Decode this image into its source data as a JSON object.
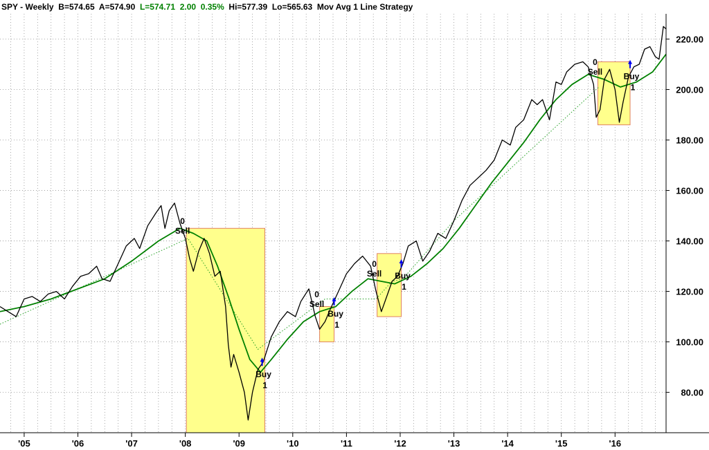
{
  "header": {
    "symbol": "SPY - Weekly",
    "bid": "B=574.65",
    "ask": "A=574.90",
    "last": "L=574.71",
    "change": "2.00",
    "change_pct": "0.35%",
    "hi": "Hi=577.39",
    "lo": "Lo=565.63",
    "study": "Mov Avg 1 Line  Strategy"
  },
  "colors": {
    "price": "#000000",
    "moving_average": "#008000",
    "trend_dotted": "#22a022",
    "highlight_fill": "#ffff8c",
    "highlight_border": "#e08060",
    "signal_arrow": "#0000ee",
    "positive_change": "#008000",
    "grid": "#909090"
  },
  "chart_data": {
    "type": "line",
    "title": "",
    "xlabel": "",
    "ylabel": "",
    "x_ticks": [
      "'05",
      "'06",
      "'07",
      "'08",
      "'09",
      "'10",
      "'11",
      "'12",
      "'13",
      "'14",
      "'15",
      "'16"
    ],
    "xlim": [
      2004.55,
      2016.95
    ],
    "y_ticks": [
      "80.00",
      "100.00",
      "120.00",
      "140.00",
      "160.00",
      "180.00",
      "200.00",
      "220.00"
    ],
    "ylim": [
      64,
      230
    ],
    "y_axis_side": "right",
    "grid": true,
    "legend": "none",
    "series": [
      {
        "key": "price",
        "style": "black line",
        "points": [
          [
            2004.55,
            114
          ],
          [
            2004.7,
            112
          ],
          [
            2004.85,
            110
          ],
          [
            2005.0,
            117
          ],
          [
            2005.15,
            118
          ],
          [
            2005.3,
            116
          ],
          [
            2005.45,
            119
          ],
          [
            2005.6,
            120
          ],
          [
            2005.75,
            117
          ],
          [
            2005.9,
            122
          ],
          [
            2006.05,
            126
          ],
          [
            2006.2,
            127
          ],
          [
            2006.35,
            130
          ],
          [
            2006.45,
            125
          ],
          [
            2006.6,
            124
          ],
          [
            2006.75,
            131
          ],
          [
            2006.9,
            138
          ],
          [
            2007.05,
            141
          ],
          [
            2007.15,
            137
          ],
          [
            2007.3,
            146
          ],
          [
            2007.45,
            151
          ],
          [
            2007.55,
            154
          ],
          [
            2007.62,
            145
          ],
          [
            2007.7,
            152
          ],
          [
            2007.8,
            155
          ],
          [
            2007.9,
            147
          ],
          [
            2008.0,
            141
          ],
          [
            2008.08,
            133
          ],
          [
            2008.15,
            128
          ],
          [
            2008.25,
            136
          ],
          [
            2008.35,
            141
          ],
          [
            2008.45,
            135
          ],
          [
            2008.55,
            126
          ],
          [
            2008.65,
            128
          ],
          [
            2008.75,
            114
          ],
          [
            2008.8,
            99
          ],
          [
            2008.85,
            90
          ],
          [
            2008.9,
            95
          ],
          [
            2009.0,
            88
          ],
          [
            2009.1,
            80
          ],
          [
            2009.17,
            69
          ],
          [
            2009.25,
            80
          ],
          [
            2009.35,
            89
          ],
          [
            2009.45,
            92
          ],
          [
            2009.6,
            102
          ],
          [
            2009.75,
            108
          ],
          [
            2009.9,
            112
          ],
          [
            2010.05,
            110
          ],
          [
            2010.15,
            116
          ],
          [
            2010.3,
            121
          ],
          [
            2010.42,
            110
          ],
          [
            2010.5,
            105
          ],
          [
            2010.6,
            108
          ],
          [
            2010.7,
            113
          ],
          [
            2010.85,
            120
          ],
          [
            2011.0,
            127
          ],
          [
            2011.15,
            131
          ],
          [
            2011.3,
            134
          ],
          [
            2011.45,
            130
          ],
          [
            2011.55,
            120
          ],
          [
            2011.65,
            112
          ],
          [
            2011.75,
            118
          ],
          [
            2011.85,
            124
          ],
          [
            2011.95,
            126
          ],
          [
            2012.05,
            131
          ],
          [
            2012.15,
            138
          ],
          [
            2012.3,
            140
          ],
          [
            2012.42,
            132
          ],
          [
            2012.55,
            136
          ],
          [
            2012.7,
            143
          ],
          [
            2012.85,
            141
          ],
          [
            2013.0,
            148
          ],
          [
            2013.15,
            156
          ],
          [
            2013.3,
            162
          ],
          [
            2013.45,
            165
          ],
          [
            2013.6,
            168
          ],
          [
            2013.75,
            172
          ],
          [
            2013.9,
            180
          ],
          [
            2014.05,
            178
          ],
          [
            2014.15,
            185
          ],
          [
            2014.3,
            188
          ],
          [
            2014.45,
            196
          ],
          [
            2014.55,
            194
          ],
          [
            2014.65,
            196
          ],
          [
            2014.78,
            188
          ],
          [
            2014.9,
            203
          ],
          [
            2015.0,
            202
          ],
          [
            2015.1,
            207
          ],
          [
            2015.25,
            210
          ],
          [
            2015.4,
            211
          ],
          [
            2015.5,
            209
          ],
          [
            2015.6,
            202
          ],
          [
            2015.65,
            189
          ],
          [
            2015.72,
            192
          ],
          [
            2015.8,
            204
          ],
          [
            2015.9,
            208
          ],
          [
            2016.0,
            200
          ],
          [
            2016.08,
            187
          ],
          [
            2016.15,
            195
          ],
          [
            2016.25,
            205
          ],
          [
            2016.35,
            209
          ],
          [
            2016.45,
            210
          ],
          [
            2016.55,
            216
          ],
          [
            2016.65,
            217
          ],
          [
            2016.75,
            213
          ],
          [
            2016.82,
            212
          ],
          [
            2016.9,
            225
          ],
          [
            2016.95,
            224
          ]
        ]
      },
      {
        "key": "moving_average",
        "style": "green line",
        "points": [
          [
            2004.55,
            112
          ],
          [
            2005.0,
            114
          ],
          [
            2005.5,
            117
          ],
          [
            2006.0,
            121
          ],
          [
            2006.5,
            125
          ],
          [
            2007.0,
            132
          ],
          [
            2007.5,
            140
          ],
          [
            2007.9,
            145
          ],
          [
            2008.15,
            143
          ],
          [
            2008.4,
            140
          ],
          [
            2008.6,
            130
          ],
          [
            2008.8,
            118
          ],
          [
            2009.0,
            105
          ],
          [
            2009.2,
            93
          ],
          [
            2009.4,
            88
          ],
          [
            2009.6,
            93
          ],
          [
            2009.9,
            101
          ],
          [
            2010.2,
            108
          ],
          [
            2010.5,
            112
          ],
          [
            2010.8,
            114
          ],
          [
            2011.1,
            120
          ],
          [
            2011.4,
            125
          ],
          [
            2011.65,
            124
          ],
          [
            2011.9,
            123
          ],
          [
            2012.2,
            126
          ],
          [
            2012.5,
            131
          ],
          [
            2012.8,
            137
          ],
          [
            2013.1,
            145
          ],
          [
            2013.4,
            154
          ],
          [
            2013.7,
            163
          ],
          [
            2014.0,
            171
          ],
          [
            2014.3,
            179
          ],
          [
            2014.6,
            188
          ],
          [
            2014.9,
            196
          ],
          [
            2015.2,
            202
          ],
          [
            2015.5,
            206
          ],
          [
            2015.8,
            204
          ],
          [
            2016.1,
            201
          ],
          [
            2016.4,
            203
          ],
          [
            2016.7,
            207
          ],
          [
            2016.95,
            214
          ]
        ]
      },
      {
        "key": "trend_dotted",
        "style": "dotted green line",
        "points": [
          [
            2004.55,
            107
          ],
          [
            2008.05,
            141
          ],
          [
            2009.35,
            97
          ],
          [
            2010.6,
            117
          ],
          [
            2011.55,
            117
          ],
          [
            2011.85,
            124
          ],
          [
            2012.05,
            125
          ],
          [
            2013.0,
            148
          ],
          [
            2015.7,
            201
          ]
        ]
      }
    ],
    "highlight_zones": [
      {
        "x0": 2008.02,
        "x1": 2009.48,
        "y0": 64,
        "y1": 145
      },
      {
        "x0": 2010.5,
        "x1": 2010.77,
        "y0": 100,
        "y1": 114
      },
      {
        "x0": 2011.57,
        "x1": 2012.02,
        "y0": 110,
        "y1": 135
      },
      {
        "x0": 2015.68,
        "x1": 2016.28,
        "y0": 186,
        "y1": 211
      }
    ],
    "signals": [
      {
        "type": "sell",
        "label": "Sell",
        "count": "0",
        "x": 2008.0,
        "price": 144
      },
      {
        "type": "buy",
        "label": "Buy",
        "count": "1",
        "x": 2009.43,
        "price": 91
      },
      {
        "type": "sell",
        "label": "Sell",
        "count": "0",
        "x": 2010.5,
        "price": 115
      },
      {
        "type": "buy",
        "label": "Buy",
        "count": "1",
        "x": 2010.77,
        "price": 115
      },
      {
        "type": "sell",
        "label": "Sell",
        "count": "0",
        "x": 2011.57,
        "price": 127
      },
      {
        "type": "buy",
        "label": "Buy",
        "count": "1",
        "x": 2012.02,
        "price": 130
      },
      {
        "type": "sell",
        "label": "Sell",
        "count": "0",
        "x": 2015.68,
        "price": 207
      },
      {
        "type": "buy",
        "label": "Buy",
        "count": "1",
        "x": 2016.28,
        "price": 209
      }
    ]
  }
}
